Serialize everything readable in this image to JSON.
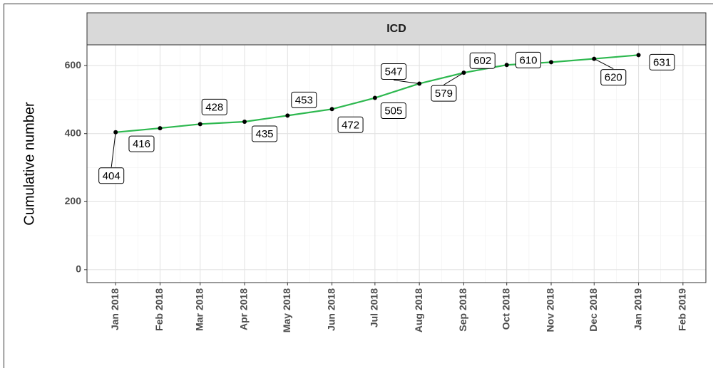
{
  "chart_data": {
    "type": "line",
    "title": "ICD",
    "y_label": "Cumulative number",
    "x": [
      "Jan 2018",
      "Feb 2018",
      "Mar 2018",
      "Apr 2018",
      "May 2018",
      "Jun 2018",
      "Jul 2018",
      "Aug 2018",
      "Sep 2018",
      "Oct 2018",
      "Nov 2018",
      "Dec 2018",
      "Jan 2019"
    ],
    "series": [
      {
        "color": "#2db84f",
        "values": [
          404,
          416,
          428,
          435,
          453,
          472,
          505,
          547,
          579,
          602,
          610,
          620,
          631
        ]
      }
    ],
    "xlim": [
      "2017-12-12",
      "2019-02-17"
    ],
    "xticks": [
      "Jan 2018",
      "Feb 2018",
      "Mar 2018",
      "Apr 2018",
      "May 2018",
      "Jun 2018",
      "Jul 2018",
      "Aug 2018",
      "Sep 2018",
      "Oct 2018",
      "Nov 2018",
      "Dec 2018",
      "Jan 2019",
      "Feb 2019"
    ],
    "ylim": [
      -38,
      661
    ],
    "yticks": [
      0,
      200,
      400,
      600
    ],
    "grid": true
  }
}
